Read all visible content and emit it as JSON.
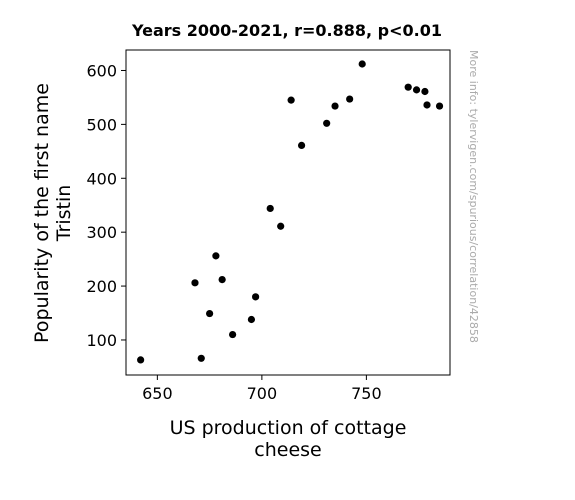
{
  "chart_data": {
    "type": "scatter",
    "title": "Years 2000-2021, r=0.888, p<0.01",
    "xlabel": [
      "US production of cottage",
      "cheese"
    ],
    "ylabel": [
      "Popularity of the first name",
      "Tristin"
    ],
    "xlim": [
      635,
      790
    ],
    "ylim": [
      35,
      638
    ],
    "xticks": [
      650,
      700,
      750
    ],
    "yticks": [
      100,
      200,
      300,
      400,
      500,
      600
    ],
    "grid": false,
    "marker_color": "#000000",
    "side_note": "More info: tylervigen.com/spurious/correlation/42858",
    "points": [
      {
        "x": 642,
        "y": 63
      },
      {
        "x": 668,
        "y": 206
      },
      {
        "x": 671,
        "y": 66
      },
      {
        "x": 675,
        "y": 149
      },
      {
        "x": 678,
        "y": 256
      },
      {
        "x": 681,
        "y": 212
      },
      {
        "x": 686,
        "y": 110
      },
      {
        "x": 695,
        "y": 138
      },
      {
        "x": 697,
        "y": 180
      },
      {
        "x": 704,
        "y": 344
      },
      {
        "x": 709,
        "y": 311
      },
      {
        "x": 714,
        "y": 545
      },
      {
        "x": 719,
        "y": 461
      },
      {
        "x": 731,
        "y": 502
      },
      {
        "x": 735,
        "y": 534
      },
      {
        "x": 742,
        "y": 547
      },
      {
        "x": 748,
        "y": 612
      },
      {
        "x": 770,
        "y": 569
      },
      {
        "x": 774,
        "y": 564
      },
      {
        "x": 778,
        "y": 561
      },
      {
        "x": 779,
        "y": 536
      },
      {
        "x": 785,
        "y": 534
      }
    ]
  }
}
